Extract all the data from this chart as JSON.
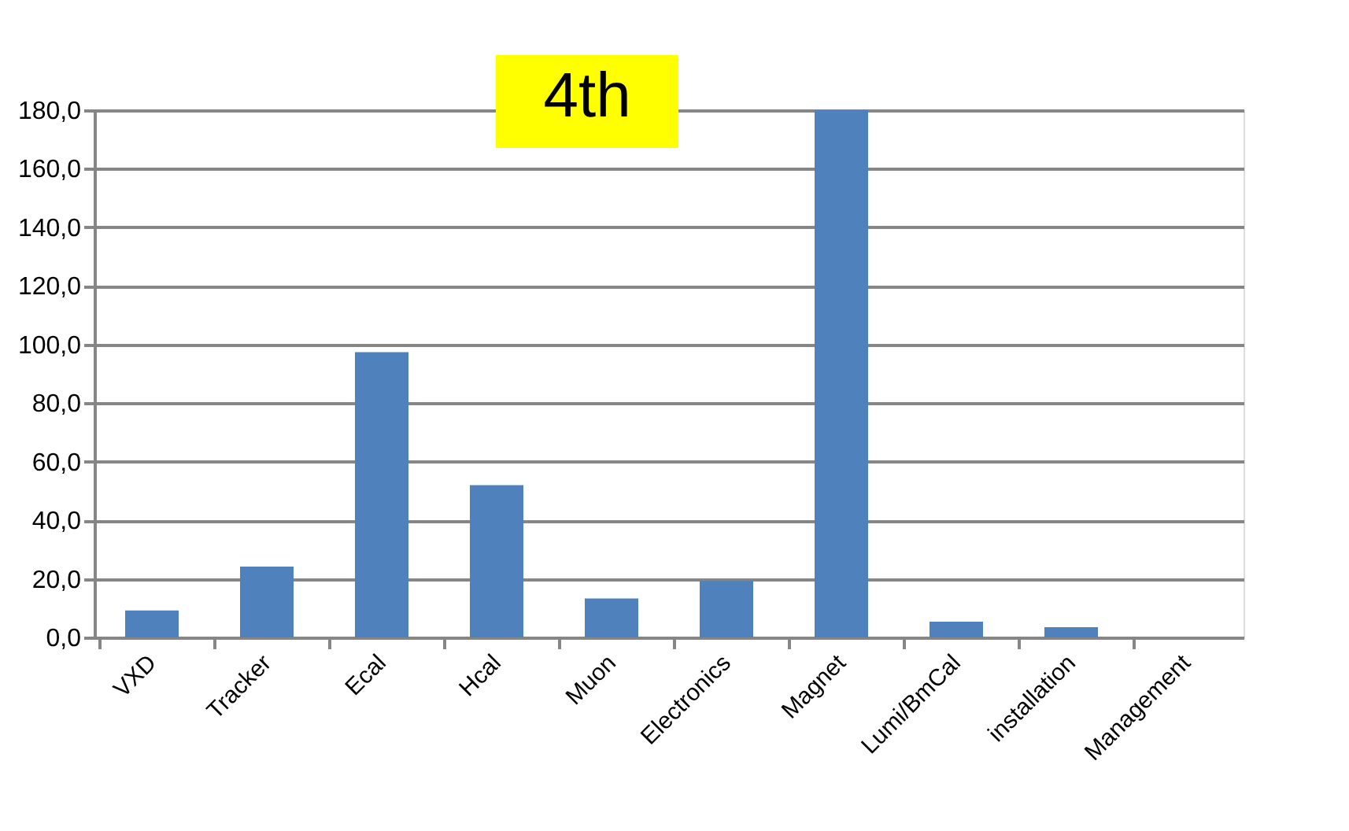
{
  "chart_data": {
    "type": "bar",
    "title": "4th",
    "categories": [
      "VXD",
      "Tracker",
      "Ecal",
      "Hcal",
      "Muon",
      "Electronics",
      "Magnet",
      "Lumi/BmCal",
      "installation",
      "Management"
    ],
    "values": [
      9.2,
      24.2,
      97.4,
      52,
      13.3,
      19.3,
      180,
      5.4,
      3.5,
      0
    ],
    "color": "#4f81bd",
    "ylim": [
      0,
      180
    ],
    "yticks": [
      {
        "value": 0,
        "label": "0,0"
      },
      {
        "value": 20,
        "label": "20,0"
      },
      {
        "value": 40,
        "label": "40,0"
      },
      {
        "value": 60,
        "label": "60,0"
      },
      {
        "value": 80,
        "label": "80,0"
      },
      {
        "value": 100,
        "label": "100,0"
      },
      {
        "value": 120,
        "label": "120,0"
      },
      {
        "value": 140,
        "label": "140,0"
      },
      {
        "value": 160,
        "label": "160,0"
      },
      {
        "value": 180,
        "label": "180,0"
      }
    ],
    "grid": "y"
  }
}
